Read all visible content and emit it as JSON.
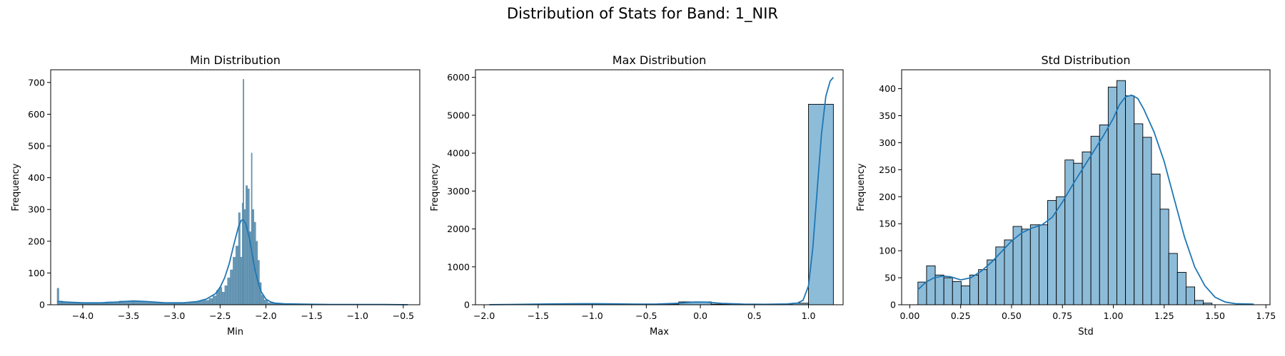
{
  "figure": {
    "title": "Distribution of Stats for Band: 1_NIR"
  },
  "chart_data": [
    {
      "type": "bar",
      "subtype": "histogram_with_kde",
      "title": "Min Distribution",
      "xlabel": "Min",
      "ylabel": "Frequency",
      "xlim": [
        -4.35,
        -0.32
      ],
      "ylim": [
        0,
        740
      ],
      "xticks": [
        -4.0,
        -3.5,
        -3.0,
        -2.5,
        -2.0,
        -1.5,
        -1.0,
        -0.5
      ],
      "yticks": [
        0,
        100,
        200,
        300,
        400,
        500,
        600,
        700
      ],
      "bar_color": "#4f86a8",
      "bar_edge": "#4f86a8",
      "bins": [
        {
          "x0": -4.28,
          "x1": -4.26,
          "y": 52
        },
        {
          "x0": -4.26,
          "x1": -4.22,
          "y": 12
        },
        {
          "x0": -4.22,
          "x1": -4.15,
          "y": 9
        },
        {
          "x0": -4.15,
          "x1": -4.05,
          "y": 6
        },
        {
          "x0": -4.05,
          "x1": -3.9,
          "y": 5
        },
        {
          "x0": -3.9,
          "x1": -3.75,
          "y": 7
        },
        {
          "x0": -3.75,
          "x1": -3.6,
          "y": 9
        },
        {
          "x0": -3.6,
          "x1": -3.45,
          "y": 12
        },
        {
          "x0": -3.45,
          "x1": -3.3,
          "y": 10
        },
        {
          "x0": -3.3,
          "x1": -3.15,
          "y": 7
        },
        {
          "x0": -3.15,
          "x1": -3.0,
          "y": 5
        },
        {
          "x0": -3.0,
          "x1": -2.85,
          "y": 4
        },
        {
          "x0": -2.85,
          "x1": -2.75,
          "y": 8
        },
        {
          "x0": -2.75,
          "x1": -2.68,
          "y": 12
        },
        {
          "x0": -2.68,
          "x1": -2.62,
          "y": 14
        },
        {
          "x0": -2.62,
          "x1": -2.58,
          "y": 20
        },
        {
          "x0": -2.58,
          "x1": -2.54,
          "y": 28
        },
        {
          "x0": -2.54,
          "x1": -2.51,
          "y": 45
        },
        {
          "x0": -2.51,
          "x1": -2.48,
          "y": 55
        },
        {
          "x0": -2.48,
          "x1": -2.45,
          "y": 40
        },
        {
          "x0": -2.45,
          "x1": -2.42,
          "y": 60
        },
        {
          "x0": -2.42,
          "x1": -2.39,
          "y": 85
        },
        {
          "x0": -2.39,
          "x1": -2.36,
          "y": 110
        },
        {
          "x0": -2.36,
          "x1": -2.33,
          "y": 150
        },
        {
          "x0": -2.33,
          "x1": -2.3,
          "y": 185
        },
        {
          "x0": -2.3,
          "x1": -2.28,
          "y": 290
        },
        {
          "x0": -2.28,
          "x1": -2.26,
          "y": 150
        },
        {
          "x0": -2.26,
          "x1": -2.25,
          "y": 320
        },
        {
          "x0": -2.25,
          "x1": -2.24,
          "y": 710
        },
        {
          "x0": -2.24,
          "x1": -2.22,
          "y": 300
        },
        {
          "x0": -2.22,
          "x1": -2.2,
          "y": 375
        },
        {
          "x0": -2.2,
          "x1": -2.18,
          "y": 365
        },
        {
          "x0": -2.18,
          "x1": -2.16,
          "y": 230
        },
        {
          "x0": -2.16,
          "x1": -2.15,
          "y": 478
        },
        {
          "x0": -2.15,
          "x1": -2.13,
          "y": 300
        },
        {
          "x0": -2.13,
          "x1": -2.11,
          "y": 260
        },
        {
          "x0": -2.11,
          "x1": -2.09,
          "y": 200
        },
        {
          "x0": -2.09,
          "x1": -2.07,
          "y": 140
        },
        {
          "x0": -2.07,
          "x1": -2.05,
          "y": 70
        },
        {
          "x0": -2.05,
          "x1": -2.02,
          "y": 30
        },
        {
          "x0": -2.02,
          "x1": -1.98,
          "y": 15
        },
        {
          "x0": -1.98,
          "x1": -1.9,
          "y": 6
        },
        {
          "x0": -1.9,
          "x1": -1.8,
          "y": 3
        },
        {
          "x0": -1.8,
          "x1": -1.5,
          "y": 2
        },
        {
          "x0": -1.5,
          "x1": -0.45,
          "y": 1
        }
      ],
      "kde": {
        "x": [
          -4.28,
          -4.15,
          -4.0,
          -3.8,
          -3.6,
          -3.45,
          -3.3,
          -3.1,
          -2.9,
          -2.75,
          -2.65,
          -2.55,
          -2.5,
          -2.45,
          -2.4,
          -2.35,
          -2.3,
          -2.27,
          -2.25,
          -2.22,
          -2.18,
          -2.15,
          -2.12,
          -2.08,
          -2.05,
          -2.0,
          -1.95,
          -1.9,
          -1.8,
          -1.6,
          -1.3,
          -1.0,
          -0.7,
          -0.45
        ],
        "y": [
          10,
          8,
          6,
          6,
          9,
          12,
          10,
          6,
          6,
          10,
          18,
          35,
          55,
          85,
          130,
          190,
          245,
          265,
          268,
          255,
          210,
          160,
          110,
          65,
          40,
          18,
          9,
          5,
          3,
          2,
          1,
          1,
          1,
          0
        ]
      }
    },
    {
      "type": "bar",
      "subtype": "histogram_with_kde",
      "title": "Max Distribution",
      "xlabel": "Max",
      "ylabel": "Frequency",
      "xlim": [
        -2.08,
        1.32
      ],
      "ylim": [
        0,
        6200
      ],
      "xticks": [
        -2.0,
        -1.5,
        -1.0,
        -0.5,
        0.0,
        0.5,
        1.0
      ],
      "yticks": [
        0,
        1000,
        2000,
        3000,
        4000,
        5000,
        6000
      ],
      "bar_color": "#8dbcd9",
      "bar_edge": "#000000",
      "bins": [
        {
          "x0": -1.95,
          "x1": -1.7,
          "y": 5
        },
        {
          "x0": -1.7,
          "x1": -1.45,
          "y": 10
        },
        {
          "x0": -1.45,
          "x1": -1.2,
          "y": 20
        },
        {
          "x0": -1.2,
          "x1": -0.95,
          "y": 25
        },
        {
          "x0": -0.95,
          "x1": -0.7,
          "y": 15
        },
        {
          "x0": -0.7,
          "x1": -0.45,
          "y": 10
        },
        {
          "x0": -0.45,
          "x1": -0.2,
          "y": 20
        },
        {
          "x0": -0.2,
          "x1": 0.1,
          "y": 75
        },
        {
          "x0": 0.1,
          "x1": 0.35,
          "y": 15
        },
        {
          "x0": 0.35,
          "x1": 0.6,
          "y": 10
        },
        {
          "x0": 0.6,
          "x1": 0.85,
          "y": 8
        },
        {
          "x0": 0.85,
          "x1": 1.0,
          "y": 40
        },
        {
          "x0": 1.0,
          "x1": 1.23,
          "y": 5290
        }
      ],
      "kde": {
        "x": [
          -1.95,
          -1.7,
          -1.45,
          -1.2,
          -1.0,
          -0.8,
          -0.6,
          -0.4,
          -0.2,
          -0.05,
          0.05,
          0.2,
          0.4,
          0.6,
          0.8,
          0.9,
          0.95,
          1.0,
          1.04,
          1.08,
          1.12,
          1.16,
          1.2,
          1.23
        ],
        "y": [
          2,
          10,
          18,
          25,
          28,
          22,
          15,
          18,
          40,
          72,
          70,
          35,
          15,
          12,
          20,
          45,
          120,
          500,
          1500,
          3000,
          4500,
          5500,
          5900,
          6000
        ]
      }
    },
    {
      "type": "bar",
      "subtype": "histogram_with_kde",
      "title": "Std Distribution",
      "xlabel": "Std",
      "ylabel": "Frequency",
      "xlim": [
        -0.04,
        1.77
      ],
      "ylim": [
        0,
        435
      ],
      "xticks": [
        0.0,
        0.25,
        0.5,
        0.75,
        1.0,
        1.25,
        1.5,
        1.75
      ],
      "xtick_labels": [
        "0.00",
        "0.25",
        "0.50",
        "0.75",
        "1.00",
        "1.25",
        "1.50",
        "1.75"
      ],
      "yticks": [
        0,
        50,
        100,
        150,
        200,
        250,
        300,
        350,
        400
      ],
      "bar_color": "#8dbcd9",
      "bar_edge": "#000000",
      "bin_start": 0.04,
      "bin_width": 0.0425,
      "counts": [
        42,
        72,
        55,
        50,
        43,
        35,
        55,
        65,
        83,
        107,
        120,
        145,
        140,
        148,
        148,
        193,
        200,
        268,
        262,
        283,
        312,
        333,
        403,
        415,
        387,
        335,
        310,
        242,
        177,
        95,
        60,
        33,
        8,
        3
      ],
      "kde": {
        "x": [
          0.04,
          0.08,
          0.12,
          0.16,
          0.2,
          0.25,
          0.3,
          0.35,
          0.4,
          0.45,
          0.5,
          0.55,
          0.6,
          0.65,
          0.7,
          0.75,
          0.8,
          0.85,
          0.9,
          0.95,
          1.0,
          1.03,
          1.06,
          1.09,
          1.12,
          1.15,
          1.2,
          1.25,
          1.3,
          1.35,
          1.4,
          1.45,
          1.5,
          1.55,
          1.6,
          1.69
        ],
        "y": [
          28,
          42,
          50,
          53,
          52,
          46,
          50,
          62,
          78,
          98,
          118,
          133,
          142,
          148,
          162,
          190,
          222,
          252,
          282,
          312,
          345,
          370,
          385,
          388,
          382,
          362,
          320,
          265,
          195,
          125,
          70,
          35,
          14,
          5,
          2,
          1
        ]
      }
    }
  ]
}
